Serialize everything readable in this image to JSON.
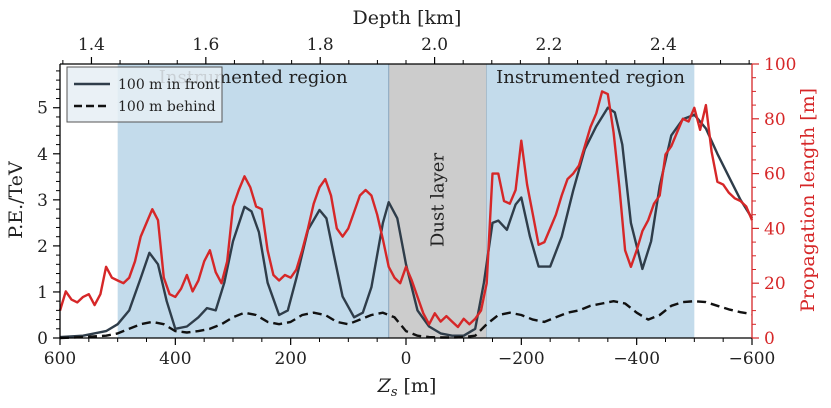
{
  "chart_data": {
    "type": "line",
    "x_axis": {
      "label": "Z_s [m]",
      "range": [
        600,
        -600
      ],
      "ticks": [
        600,
        400,
        200,
        0,
        -200,
        -400,
        -600
      ],
      "tick_labels": [
        "600",
        "400",
        "200",
        "0",
        "−200",
        "−400",
        "−600"
      ]
    },
    "top_axis": {
      "label": "Depth [km]",
      "range": [
        1.345,
        2.555
      ],
      "ticks": [
        1.4,
        1.6,
        1.8,
        2.0,
        2.2,
        2.4
      ],
      "tick_labels": [
        "1.4",
        "1.6",
        "1.8",
        "2.0",
        "2.2",
        "2.4"
      ]
    },
    "y_left": {
      "label": "P.E./TeV",
      "range": [
        0,
        5.95
      ],
      "ticks": [
        0,
        1,
        2,
        3,
        4,
        5
      ],
      "tick_labels": [
        "0",
        "1",
        "2",
        "3",
        "4",
        "5"
      ]
    },
    "y_right": {
      "label": "Propagation length [m]",
      "range": [
        0,
        100
      ],
      "ticks": [
        0,
        20,
        40,
        60,
        80,
        100
      ],
      "tick_labels": [
        "0",
        "20",
        "40",
        "60",
        "80",
        "100"
      ],
      "color": "#d62728"
    },
    "regions": [
      {
        "name": "Instrumented region",
        "x_start": 500,
        "x_end": 30,
        "color": "#c3dbeb"
      },
      {
        "name": "Dust layer",
        "x_start": 30,
        "x_end": -140,
        "color": "#cccccc"
      },
      {
        "name": "Instrumented region",
        "x_start": -140,
        "x_end": -500,
        "color": "#c3dbeb"
      }
    ],
    "legend": {
      "position": "upper-left",
      "entries": [
        {
          "label": "100 m in front",
          "style": "solid",
          "series": "front"
        },
        {
          "label": "100 m behind",
          "style": "dashed",
          "series": "behind"
        }
      ]
    },
    "series": [
      {
        "name": "100 m in front",
        "axis": "left",
        "color": "#2f3d4a",
        "x": [
          600,
          560,
          520,
          500,
          480,
          460,
          445,
          430,
          415,
          400,
          380,
          360,
          345,
          330,
          315,
          300,
          280,
          268,
          255,
          240,
          220,
          205,
          190,
          170,
          150,
          138,
          125,
          110,
          90,
          75,
          60,
          40,
          30,
          15,
          0,
          -20,
          -40,
          -60,
          -80,
          -100,
          -120,
          -135,
          -150,
          -160,
          -175,
          -190,
          -200,
          -215,
          -230,
          -250,
          -270,
          -290,
          -310,
          -330,
          -350,
          -362,
          -375,
          -390,
          -410,
          -425,
          -440,
          -460,
          -480,
          -500,
          -520,
          -540,
          -560,
          -580,
          -600
        ],
        "y": [
          0.02,
          0.05,
          0.15,
          0.3,
          0.6,
          1.3,
          1.85,
          1.6,
          0.8,
          0.2,
          0.25,
          0.45,
          0.65,
          0.6,
          1.2,
          2.1,
          2.85,
          2.75,
          2.3,
          1.2,
          0.5,
          0.6,
          1.3,
          2.35,
          2.78,
          2.6,
          1.8,
          0.9,
          0.45,
          0.55,
          1.1,
          2.5,
          2.95,
          2.6,
          1.6,
          0.6,
          0.25,
          0.1,
          0.05,
          0.05,
          0.2,
          1.2,
          2.5,
          2.55,
          2.35,
          2.9,
          3.05,
          2.2,
          1.55,
          1.55,
          2.2,
          3.2,
          4.1,
          4.6,
          5.0,
          4.9,
          4.2,
          2.5,
          1.5,
          2.1,
          3.3,
          4.4,
          4.75,
          4.85,
          4.55,
          4.0,
          3.5,
          3.0,
          2.6
        ]
      },
      {
        "name": "100 m behind",
        "axis": "left",
        "color": "#111111",
        "x": [
          600,
          560,
          520,
          500,
          480,
          460,
          440,
          420,
          400,
          380,
          360,
          340,
          320,
          300,
          280,
          260,
          240,
          220,
          200,
          180,
          160,
          140,
          120,
          100,
          80,
          60,
          40,
          20,
          0,
          -20,
          -40,
          -60,
          -80,
          -100,
          -120,
          -140,
          -160,
          -180,
          -200,
          -220,
          -240,
          -260,
          -280,
          -300,
          -320,
          -340,
          -360,
          -380,
          -400,
          -420,
          -440,
          -460,
          -480,
          -500,
          -520,
          -540,
          -560,
          -580,
          -600
        ],
        "y": [
          0.0,
          0.02,
          0.05,
          0.1,
          0.2,
          0.3,
          0.35,
          0.3,
          0.15,
          0.12,
          0.15,
          0.2,
          0.3,
          0.45,
          0.55,
          0.5,
          0.35,
          0.3,
          0.35,
          0.5,
          0.55,
          0.5,
          0.35,
          0.3,
          0.4,
          0.5,
          0.55,
          0.45,
          0.15,
          0.05,
          0.02,
          0.01,
          0.01,
          0.02,
          0.05,
          0.3,
          0.5,
          0.55,
          0.5,
          0.4,
          0.35,
          0.45,
          0.55,
          0.6,
          0.7,
          0.75,
          0.8,
          0.75,
          0.55,
          0.4,
          0.5,
          0.7,
          0.78,
          0.8,
          0.78,
          0.7,
          0.62,
          0.56,
          0.52
        ]
      },
      {
        "name": "Propagation length",
        "axis": "right",
        "color": "#d62728",
        "x": [
          600,
          590,
          580,
          570,
          560,
          550,
          540,
          530,
          520,
          510,
          500,
          490,
          480,
          470,
          460,
          450,
          440,
          430,
          420,
          410,
          400,
          390,
          380,
          370,
          360,
          350,
          340,
          330,
          320,
          310,
          300,
          290,
          280,
          270,
          260,
          250,
          240,
          230,
          220,
          210,
          200,
          190,
          180,
          170,
          160,
          150,
          140,
          130,
          120,
          110,
          100,
          90,
          80,
          70,
          60,
          50,
          40,
          30,
          20,
          10,
          0,
          -10,
          -20,
          -30,
          -40,
          -50,
          -60,
          -70,
          -80,
          -90,
          -100,
          -110,
          -120,
          -130,
          -140,
          -150,
          -160,
          -170,
          -180,
          -190,
          -200,
          -210,
          -220,
          -230,
          -240,
          -250,
          -260,
          -270,
          -280,
          -290,
          -300,
          -310,
          -320,
          -330,
          -340,
          -350,
          -360,
          -370,
          -380,
          -390,
          -400,
          -410,
          -420,
          -430,
          -440,
          -450,
          -460,
          -470,
          -480,
          -490,
          -500,
          -510,
          -520,
          -530,
          -540,
          -550,
          -560,
          -570,
          -580,
          -590,
          -600
        ],
        "y": [
          10,
          17,
          14,
          13,
          15,
          16,
          12,
          16,
          26,
          22,
          21,
          20,
          22,
          28,
          37,
          42,
          47,
          43,
          22,
          16,
          15,
          18,
          23,
          17,
          21,
          28,
          32,
          24,
          20,
          28,
          48,
          54,
          59,
          55,
          48,
          47,
          32,
          23,
          21,
          23,
          22,
          25,
          32,
          40,
          49,
          55,
          58,
          52,
          40,
          37,
          40,
          46,
          52,
          54,
          52,
          45,
          36,
          26,
          22,
          20,
          26,
          21,
          15,
          9,
          5,
          9,
          6,
          8,
          6,
          4,
          7,
          5,
          7,
          10,
          20,
          60,
          60,
          50,
          49,
          54,
          72,
          56,
          45,
          34,
          35,
          40,
          45,
          52,
          58,
          60,
          63,
          70,
          77,
          82,
          90,
          89,
          75,
          55,
          32,
          26,
          32,
          39,
          43,
          49,
          52,
          67,
          70,
          75,
          80,
          79,
          84,
          76,
          85,
          68,
          57,
          56,
          53,
          51,
          50,
          48,
          43
        ]
      }
    ]
  }
}
